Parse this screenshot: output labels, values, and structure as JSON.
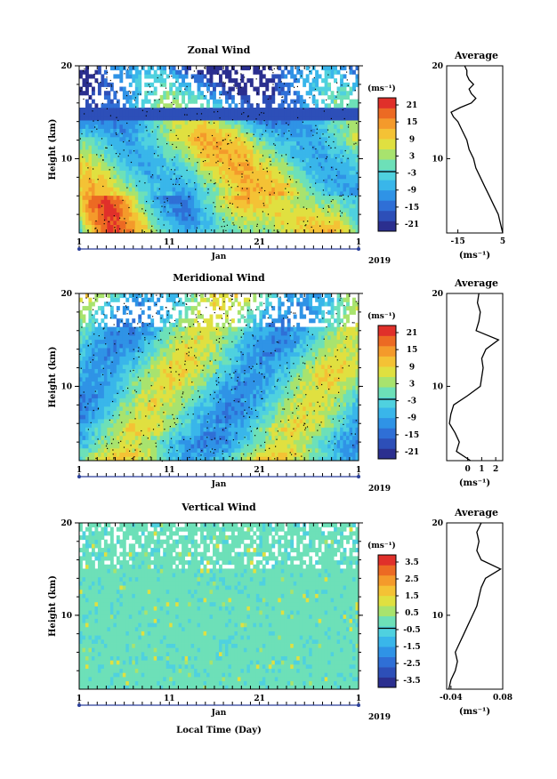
{
  "colors": {
    "scale": [
      "#2b2f8f",
      "#2d4fb8",
      "#2f6fd6",
      "#2f93e6",
      "#39b6ea",
      "#4fd1df",
      "#6de0b8",
      "#a8e36e",
      "#e0e040",
      "#f4c235",
      "#f49a2b",
      "#ec6a23",
      "#e0302a"
    ],
    "background": "#ffffff"
  },
  "chart_data": [
    {
      "type": "heatmap",
      "title": "Zonal Wind",
      "xlabel": "Jan",
      "ylabel": "Height (km)",
      "x_ticks": [
        "1",
        "11",
        "21",
        "1"
      ],
      "y_ticks": [
        "20",
        "10"
      ],
      "year_label": "2019",
      "colorbar": {
        "unit": "(ms⁻¹)",
        "ticks": [
          "21",
          "15",
          "9",
          "3",
          "-3",
          "-9",
          "-15",
          "-21"
        ],
        "range": [
          -24,
          24
        ]
      },
      "average_profile": {
        "title": "Average",
        "xlabel": "(ms⁻¹)",
        "x_ticks": [
          "-15",
          "5"
        ],
        "xlim": [
          -20,
          5
        ],
        "y_ticks": [
          "20",
          "10"
        ],
        "height_km": [
          2,
          3,
          4,
          5,
          6,
          7,
          8,
          9,
          10,
          11,
          12,
          13,
          14,
          14.5,
          15,
          15.5,
          16,
          16.5,
          17,
          17.5,
          18,
          18.5,
          19,
          19.5,
          20
        ],
        "values": [
          5,
          4,
          3,
          1,
          -1,
          -3,
          -5,
          -7,
          -8,
          -10,
          -11,
          -13,
          -15,
          -17,
          -18,
          -14,
          -9,
          -7,
          -9,
          -10,
          -8,
          -10,
          -11,
          -11,
          -12
        ]
      }
    },
    {
      "type": "heatmap",
      "title": "Meridional Wind",
      "xlabel": "Jan",
      "ylabel": "Height (km)",
      "x_ticks": [
        "1",
        "11",
        "21",
        "1"
      ],
      "y_ticks": [
        "20",
        "10"
      ],
      "year_label": "2019",
      "colorbar": {
        "unit": "(ms⁻¹)",
        "ticks": [
          "21",
          "15",
          "9",
          "3",
          "-3",
          "-9",
          "-15",
          "-21"
        ],
        "range": [
          -24,
          24
        ]
      },
      "average_profile": {
        "title": "Average",
        "xlabel": "(ms⁻¹)",
        "x_ticks": [
          "0",
          "1",
          "2"
        ],
        "xlim": [
          -1.5,
          2.5
        ],
        "y_ticks": [
          "20",
          "10"
        ],
        "height_km": [
          2,
          3,
          4,
          5,
          6,
          7,
          8,
          9,
          10,
          11,
          12,
          13,
          14,
          15,
          16,
          17,
          18,
          19,
          20
        ],
        "values": [
          0.2,
          -0.8,
          -0.6,
          -0.9,
          -1.3,
          -1.2,
          -1.0,
          0.0,
          0.9,
          1.0,
          1.1,
          1.0,
          1.3,
          2.2,
          0.6,
          0.8,
          0.9,
          0.7,
          0.8
        ]
      }
    },
    {
      "type": "heatmap",
      "title": "Vertical Wind",
      "xlabel": "Jan",
      "ylabel": "Height (km)",
      "x_ticks": [
        "1",
        "11",
        "21",
        "1"
      ],
      "y_ticks": [
        "20",
        "10"
      ],
      "year_label": "2019",
      "colorbar": {
        "unit": "(ms⁻¹)",
        "ticks": [
          "3.5",
          "2.5",
          "1.5",
          "0.5",
          "-0.5",
          "-1.5",
          "-2.5",
          "-3.5"
        ],
        "range": [
          -4,
          4
        ]
      },
      "average_profile": {
        "title": "Average",
        "xlabel": "(ms⁻¹)",
        "x_ticks": [
          "-0.04",
          "0.08"
        ],
        "xlim": [
          -0.05,
          0.08
        ],
        "y_ticks": [
          "20",
          "10"
        ],
        "height_km": [
          2,
          3,
          4,
          5,
          6,
          7,
          8,
          9,
          10,
          11,
          12,
          13,
          14,
          15,
          16,
          17,
          18,
          19,
          20
        ],
        "values": [
          -0.045,
          -0.04,
          -0.03,
          -0.025,
          -0.03,
          -0.02,
          -0.01,
          0.0,
          0.01,
          0.02,
          0.025,
          0.03,
          0.04,
          0.075,
          0.03,
          0.02,
          0.025,
          0.02,
          0.03
        ]
      }
    }
  ],
  "footer": {
    "xlabel": "Local Time (Day)"
  }
}
